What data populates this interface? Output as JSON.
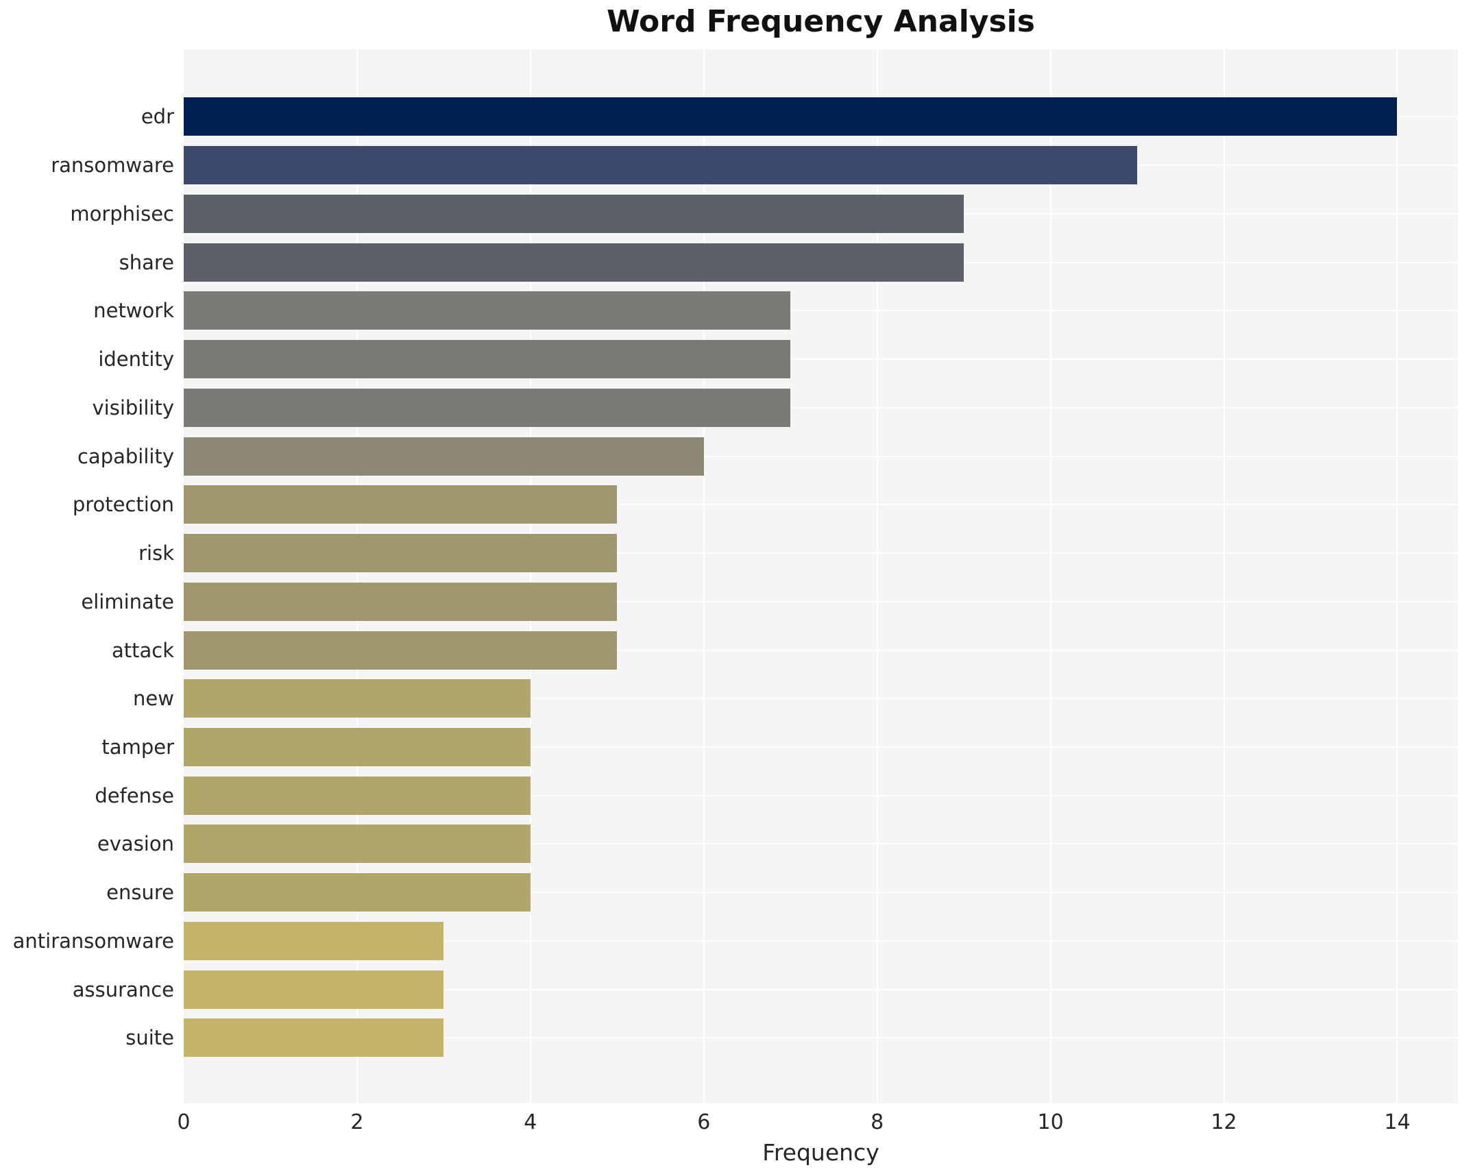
{
  "title": "Word Frequency Analysis",
  "chart_data": {
    "type": "bar",
    "orientation": "horizontal",
    "title": "Word Frequency Analysis",
    "xlabel": "Frequency",
    "ylabel": "",
    "categories": [
      "edr",
      "ransomware",
      "morphisec",
      "share",
      "network",
      "identity",
      "visibility",
      "capability",
      "protection",
      "risk",
      "eliminate",
      "attack",
      "new",
      "tamper",
      "defense",
      "evasion",
      "ensure",
      "antiransomware",
      "assurance",
      "suite"
    ],
    "values": [
      14,
      11,
      9,
      9,
      7,
      7,
      7,
      6,
      5,
      5,
      5,
      5,
      4,
      4,
      4,
      4,
      4,
      3,
      3,
      3
    ],
    "bar_colors": [
      "#002150",
      "#3d4a6b",
      "#5c6068",
      "#5c6068",
      "#7b7a74",
      "#7b7a74",
      "#7b7a74",
      "#8d8776",
      "#a0976f",
      "#a0976f",
      "#a0976f",
      "#a0976f",
      "#b1a669",
      "#b1a669",
      "#b1a669",
      "#b1a669",
      "#b1a669",
      "#c3b467",
      "#c3b467",
      "#c3b467"
    ],
    "xticks": [
      0,
      2,
      4,
      6,
      8,
      10,
      12,
      14
    ],
    "xlim": [
      0,
      14.7
    ],
    "grid": true,
    "legend": "none",
    "plot_bg": "#f5f5f6",
    "grid_color": "#ffffff",
    "fig_bg": "#ffffff",
    "text_color": "#262626"
  }
}
